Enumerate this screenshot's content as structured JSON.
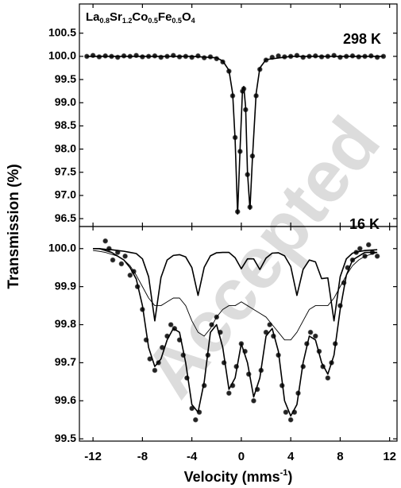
{
  "chart_data": [
    {
      "type": "line",
      "title": [
        "La",
        "0.8",
        "Sr",
        "1.2",
        "Co",
        "0.5",
        "Fe",
        "0.5",
        "O",
        "4"
      ],
      "annotation": "298 K",
      "ylabel": "Transmission (%)",
      "watermark": "Accepted",
      "xlim": [
        -13.1,
        12.6
      ],
      "xticks": [
        -12,
        -8,
        -4,
        0,
        4,
        8,
        12
      ],
      "ylim": [
        96.33,
        101.13
      ],
      "yticks": [
        96.5,
        {
          "value": 97,
          "label": "97.0"
        },
        97.5,
        {
          "value": 98,
          "label": "98.0"
        },
        98.5,
        {
          "value": 99,
          "label": "99.0"
        },
        99.5,
        {
          "value": 100,
          "label": "100.0"
        },
        100.5
      ],
      "series": [
        {
          "mode": "markers",
          "color": "#222",
          "x": [
            -12.5,
            -12,
            -11.5,
            -11,
            -10.5,
            -10,
            -9.5,
            -9,
            -8.5,
            -8,
            -7.5,
            -7,
            -6.5,
            -6,
            -5.5,
            -5,
            -4.5,
            -4,
            -3.5,
            -3,
            -2.5,
            -2,
            -1.5,
            -1,
            -0.7,
            -0.5,
            -0.3,
            -0.1,
            0.1,
            0.2,
            0.35,
            0.5,
            0.7,
            0.9,
            1.2,
            1.5,
            2,
            2.5,
            3,
            3.5,
            4,
            4.5,
            5,
            5.5,
            6,
            6.5,
            7,
            7.5,
            8,
            8.5,
            9,
            9.5,
            10,
            10.5,
            11,
            11.5
          ],
          "values": [
            100.0,
            100.02,
            99.99,
            100.01,
            100.0,
            99.98,
            100.01,
            100.0,
            100.02,
            99.99,
            100.0,
            100.01,
            99.98,
            100.0,
            100.02,
            99.99,
            100.0,
            99.98,
            100.01,
            99.97,
            99.99,
            99.95,
            99.88,
            99.68,
            99.15,
            98.25,
            96.65,
            97.95,
            99.25,
            99.3,
            98.85,
            97.45,
            96.75,
            97.85,
            99.15,
            99.72,
            99.92,
            99.98,
            100.01,
            99.99,
            100.0,
            100.02,
            99.98,
            100.0,
            100.01,
            99.99,
            100.0,
            100.02,
            99.98,
            100.0,
            100.01,
            99.99,
            100.0,
            100.01,
            99.98,
            100.0
          ]
        },
        {
          "mode": "line",
          "color": "#000",
          "x": [
            -12.5,
            -4,
            -2,
            -1.5,
            -1,
            -0.7,
            -0.5,
            -0.3,
            -0.1,
            0.1,
            0.2,
            0.35,
            0.5,
            0.7,
            0.9,
            1.2,
            1.5,
            2,
            4,
            11.5
          ],
          "values": [
            100.0,
            100.0,
            99.97,
            99.9,
            99.7,
            99.2,
            98.2,
            96.6,
            98.0,
            99.3,
            99.35,
            98.9,
            97.5,
            96.7,
            97.8,
            99.2,
            99.75,
            99.93,
            100.0,
            100.0
          ]
        }
      ]
    },
    {
      "type": "line",
      "annotation": "16 K",
      "xlabel": [
        "Velocity (mms",
        "-1",
        ")"
      ],
      "xlim": [
        -13.1,
        12.6
      ],
      "xticks": [
        -12,
        -8,
        -4,
        0,
        4,
        8,
        12
      ],
      "ylim": [
        99.494,
        100.058
      ],
      "yticks": [
        99.5,
        99.6,
        99.7,
        99.8,
        99.9,
        {
          "value": 100,
          "label": "100.0"
        }
      ],
      "series": [
        {
          "mode": "markers",
          "color": "#222",
          "x": [
            -11,
            -10.7,
            -10.4,
            -10,
            -9.7,
            -9.4,
            -9,
            -8.7,
            -8.4,
            -8,
            -7.7,
            -7.4,
            -7,
            -6.7,
            -6.4,
            -6,
            -5.7,
            -5.4,
            -5,
            -4.7,
            -4.4,
            -4,
            -3.7,
            -3.4,
            -3,
            -2.7,
            -2.4,
            -2,
            -1.7,
            -1.4,
            -1,
            -0.7,
            -0.4,
            0,
            0.3,
            0.6,
            1,
            1.3,
            1.6,
            2,
            2.3,
            2.6,
            3,
            3.3,
            3.6,
            4,
            4.3,
            4.6,
            5,
            5.3,
            5.6,
            6,
            6.3,
            6.6,
            7,
            7.3,
            7.6,
            8,
            8.3,
            8.6,
            9,
            9.3,
            9.6,
            10,
            10.3,
            10.6,
            11
          ],
          "values": [
            100.02,
            100.0,
            99.97,
            99.99,
            99.96,
            99.98,
            99.93,
            99.94,
            99.9,
            99.84,
            99.76,
            99.71,
            99.68,
            99.7,
            99.74,
            99.77,
            99.8,
            99.79,
            99.76,
            99.72,
            99.66,
            99.58,
            99.55,
            99.57,
            99.64,
            99.72,
            99.8,
            99.82,
            99.78,
            99.7,
            99.62,
            99.64,
            99.69,
            99.75,
            99.73,
            99.67,
            99.6,
            99.63,
            99.68,
            99.78,
            99.8,
            99.77,
            99.72,
            99.64,
            99.57,
            99.55,
            99.57,
            99.62,
            99.69,
            99.75,
            99.78,
            99.77,
            99.73,
            99.69,
            99.66,
            99.7,
            99.75,
            99.85,
            99.91,
            99.95,
            99.97,
            99.99,
            100.0,
            99.98,
            100.01,
            99.99,
            99.98
          ]
        },
        {
          "mode": "thin",
          "color": "#000",
          "x": [
            -12,
            -11.5,
            -11,
            -10.5,
            -10,
            -9.5,
            -9,
            -8.5,
            -8,
            -7.5,
            -7,
            -6.5,
            -6,
            -5.5,
            -5,
            -4.5,
            -4,
            -3.5,
            -3,
            -2.5,
            -2,
            -1.5,
            -1,
            -0.5,
            0,
            0.5,
            1,
            1.5,
            2,
            2.5,
            3,
            3.5,
            4,
            4.5,
            5,
            5.5,
            6,
            6.5,
            7,
            7.5,
            8,
            8.5,
            9,
            9.5,
            10,
            10.5,
            11
          ],
          "values": [
            99.995,
            99.993,
            99.99,
            99.985,
            99.98,
            99.97,
            99.955,
            99.93,
            99.9,
            99.87,
            99.85,
            99.85,
            99.86,
            99.87,
            99.87,
            99.85,
            99.81,
            99.78,
            99.77,
            99.79,
            99.82,
            99.84,
            99.85,
            99.85,
            99.86,
            99.85,
            99.84,
            99.83,
            99.82,
            99.8,
            99.78,
            99.76,
            99.76,
            99.78,
            99.81,
            99.84,
            99.85,
            99.85,
            99.85,
            99.87,
            99.9,
            99.93,
            99.955,
            99.97,
            99.98,
            99.985,
            99.99
          ]
        },
        {
          "mode": "line",
          "color": "#000",
          "x": [
            -12,
            -11.5,
            -11,
            -10.5,
            -10,
            -9.5,
            -9,
            -8.5,
            -8,
            -7.5,
            -7,
            -6.5,
            -6,
            -5.5,
            -5,
            -4.5,
            -4,
            -3.5,
            -3,
            -2.5,
            -2,
            -1.5,
            -1,
            -0.5,
            0,
            0.5,
            1,
            1.5,
            2,
            2.5,
            3,
            3.5,
            4,
            4.5,
            5,
            5.5,
            6,
            6.5,
            7,
            7.5,
            8,
            8.5,
            9,
            9.5,
            10,
            10.5,
            11
          ],
          "values": [
            100.0,
            100.0,
            99.998,
            99.997,
            99.995,
            99.993,
            99.99,
            99.987,
            99.973,
            99.926,
            99.81,
            99.924,
            99.97,
            99.982,
            99.984,
            99.978,
            99.95,
            99.877,
            99.951,
            99.981,
            99.989,
            99.99,
            99.99,
            99.976,
            99.947,
            99.973,
            99.973,
            99.945,
            99.975,
            99.988,
            99.989,
            99.981,
            99.953,
            99.877,
            99.945,
            99.97,
            99.965,
            99.921,
            99.923,
            99.81,
            99.926,
            99.973,
            99.988,
            99.992,
            99.995,
            99.996,
            99.997
          ]
        },
        {
          "mode": "line",
          "color": "#000",
          "x": [
            -12,
            -11.5,
            -11,
            -10.5,
            -10,
            -9.5,
            -9,
            -8.5,
            -8,
            -7.5,
            -7,
            -6.5,
            -6,
            -5.5,
            -5,
            -4.5,
            -4,
            -3.5,
            -3,
            -2.5,
            -2,
            -1.5,
            -1,
            -0.5,
            0,
            0.5,
            1,
            1.5,
            2,
            2.5,
            3,
            3.5,
            4,
            4.5,
            5,
            5.5,
            6,
            6.5,
            7,
            7.5,
            8,
            8.5,
            9,
            9.5,
            10,
            10.5,
            11
          ],
          "values": [
            100.0,
            100.0,
            99.995,
            99.99,
            99.98,
            99.97,
            99.95,
            99.92,
            99.85,
            99.74,
            99.69,
            99.71,
            99.76,
            99.79,
            99.78,
            99.7,
            99.59,
            99.57,
            99.65,
            99.78,
            99.8,
            99.74,
            99.63,
            99.66,
            99.75,
            99.7,
            99.61,
            99.66,
            99.77,
            99.79,
            99.73,
            99.6,
            99.56,
            99.59,
            99.7,
            99.77,
            99.76,
            99.7,
            99.67,
            99.72,
            99.84,
            99.93,
            99.97,
            99.98,
            99.99,
            99.99,
            99.99
          ]
        }
      ]
    }
  ]
}
